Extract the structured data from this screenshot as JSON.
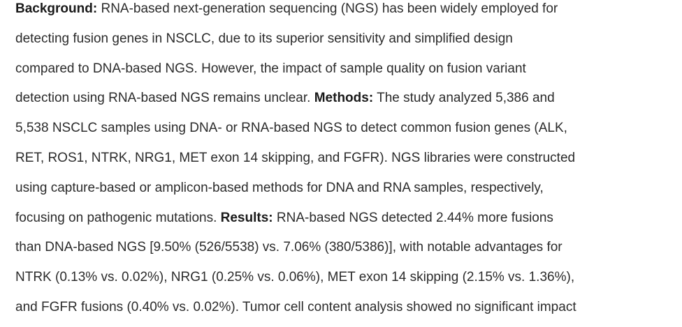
{
  "paragraph": {
    "lines": [
      [
        {
          "text": "Background:",
          "bold": true
        },
        {
          "text": " RNA-based next-generation sequencing (NGS) has been widely employed for"
        }
      ],
      [
        {
          "text": "detecting fusion genes in NSCLC, due to its superior sensitivity and simplified design"
        }
      ],
      [
        {
          "text": "compared to DNA-based NGS. However, the impact of sample quality on fusion variant"
        }
      ],
      [
        {
          "text": "detection using RNA-based NGS remains unclear. "
        },
        {
          "text": "Methods:",
          "bold": true
        },
        {
          "text": " The study analyzed 5,386 and"
        }
      ],
      [
        {
          "text": "5,538 NSCLC samples using DNA- or RNA-based NGS to detect common fusion genes (ALK,"
        }
      ],
      [
        {
          "text": "RET, ROS1, NTRK, NRG1, MET exon 14 skipping, and FGFR). NGS libraries were constructed"
        }
      ],
      [
        {
          "text": "using capture-based or amplicon-based methods for DNA and RNA samples, respectively,"
        }
      ],
      [
        {
          "text": "focusing on pathogenic mutations. "
        },
        {
          "text": "Results:",
          "bold": true
        },
        {
          "text": " RNA-based NGS detected 2.44% more fusions"
        }
      ],
      [
        {
          "text": "than DNA-based NGS [9.50% (526/5538) vs. 7.06% (380/5386)], with notable advantages for"
        }
      ],
      [
        {
          "text": "NTRK (0.13% vs. 0.02%), NRG1 (0.25% vs. 0.06%), MET exon 14 skipping (2.15% vs. 1.36%),"
        }
      ],
      [
        {
          "text": "and FGFR fusions (0.40% vs. 0.02%). Tumor cell content analysis showed no significant impact"
        }
      ]
    ]
  }
}
